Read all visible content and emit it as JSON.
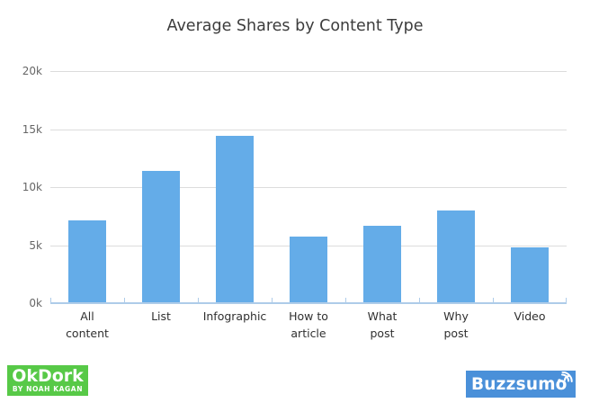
{
  "chart_data": {
    "type": "bar",
    "title": "Average Shares by Content Type",
    "categories": [
      "All\ncontent",
      "List",
      "Infographic",
      "How to\narticle",
      "What\npost",
      "Why\npost",
      "Video"
    ],
    "values": [
      7100,
      11400,
      14400,
      5700,
      6700,
      8000,
      4800
    ],
    "xlabel": "",
    "ylabel": "",
    "ylim": [
      0,
      20000
    ],
    "ytick_step": 5000,
    "yticks_top_to_bottom": [
      "20k",
      "15k",
      "10k",
      "5k",
      "0k"
    ],
    "grid": "horizontal",
    "legend": "none",
    "bar_color": "#64ace8",
    "gridline_color": "#dcdcdc",
    "axis_color": "#aecce9",
    "title_color": "#3c3c3c",
    "ytick_label_color": "#666666",
    "xtick_label_color": "#303030"
  },
  "branding": {
    "okdork": {
      "label": "OkDork",
      "tagline": "BY NOAH KAGAN",
      "bg_color": "#57c947",
      "text_color": "#ffffff"
    },
    "buzzsumo": {
      "label": "Buzzsumo",
      "bg_color": "#4a90d9",
      "text_color": "#ffffff",
      "icon": "broadcast-signal-icon"
    }
  }
}
